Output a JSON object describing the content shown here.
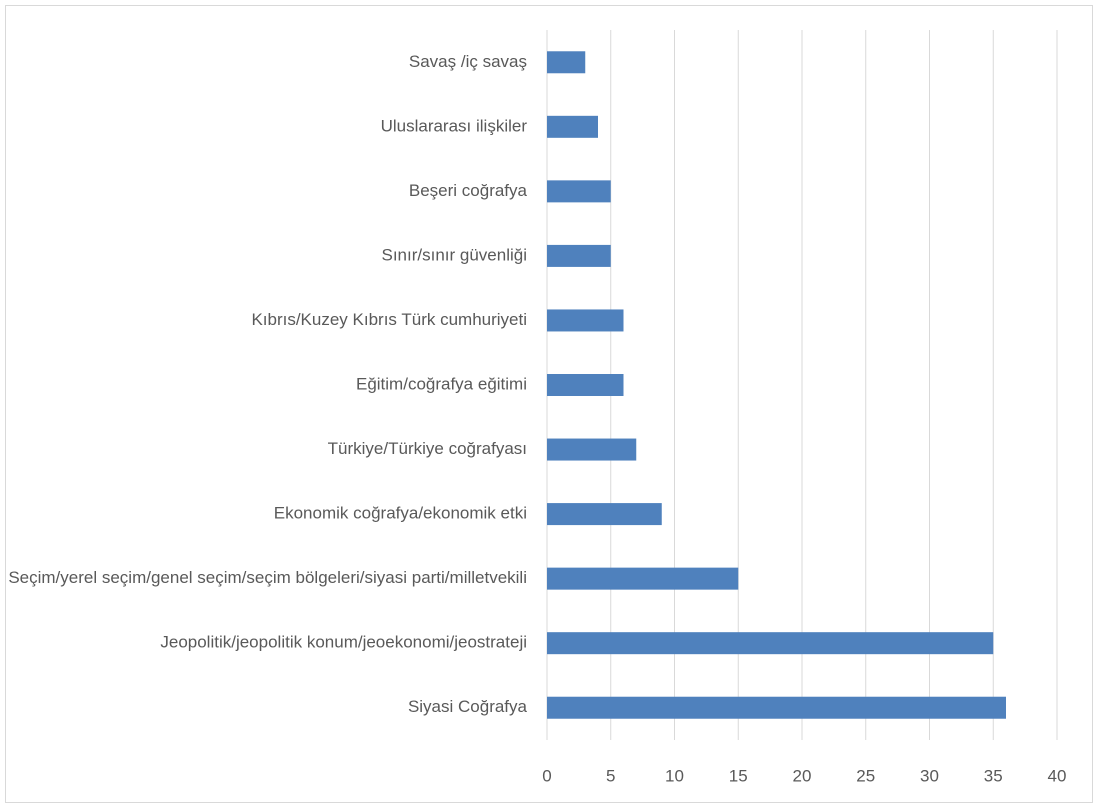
{
  "chart_data": {
    "type": "bar",
    "orientation": "horizontal",
    "categories": [
      "Savaş /iç savaş",
      "Uluslararası ilişkiler",
      "Beşeri coğrafya",
      "Sınır/sınır güvenliği",
      "Kıbrıs/Kuzey Kıbrıs Türk cumhuriyeti",
      "Eğitim/coğrafya eğitimi",
      "Türkiye/Türkiye coğrafyası",
      "Ekonomik coğrafya/ekonomik etki",
      "Seçim/yerel seçim/genel seçim/seçim bölgeleri/siyasi parti/milletvekili",
      "Jeopolitik/jeopolitik konum/jeoekonomi/jeostrateji",
      "Siyasi Coğrafya"
    ],
    "values": [
      3,
      4,
      5,
      5,
      6,
      6,
      7,
      9,
      15,
      35,
      36
    ],
    "color": "#4f81bd",
    "xlim": [
      0,
      40
    ],
    "xticks": [
      0,
      5,
      10,
      15,
      20,
      25,
      30,
      35,
      40
    ],
    "grid": true
  }
}
